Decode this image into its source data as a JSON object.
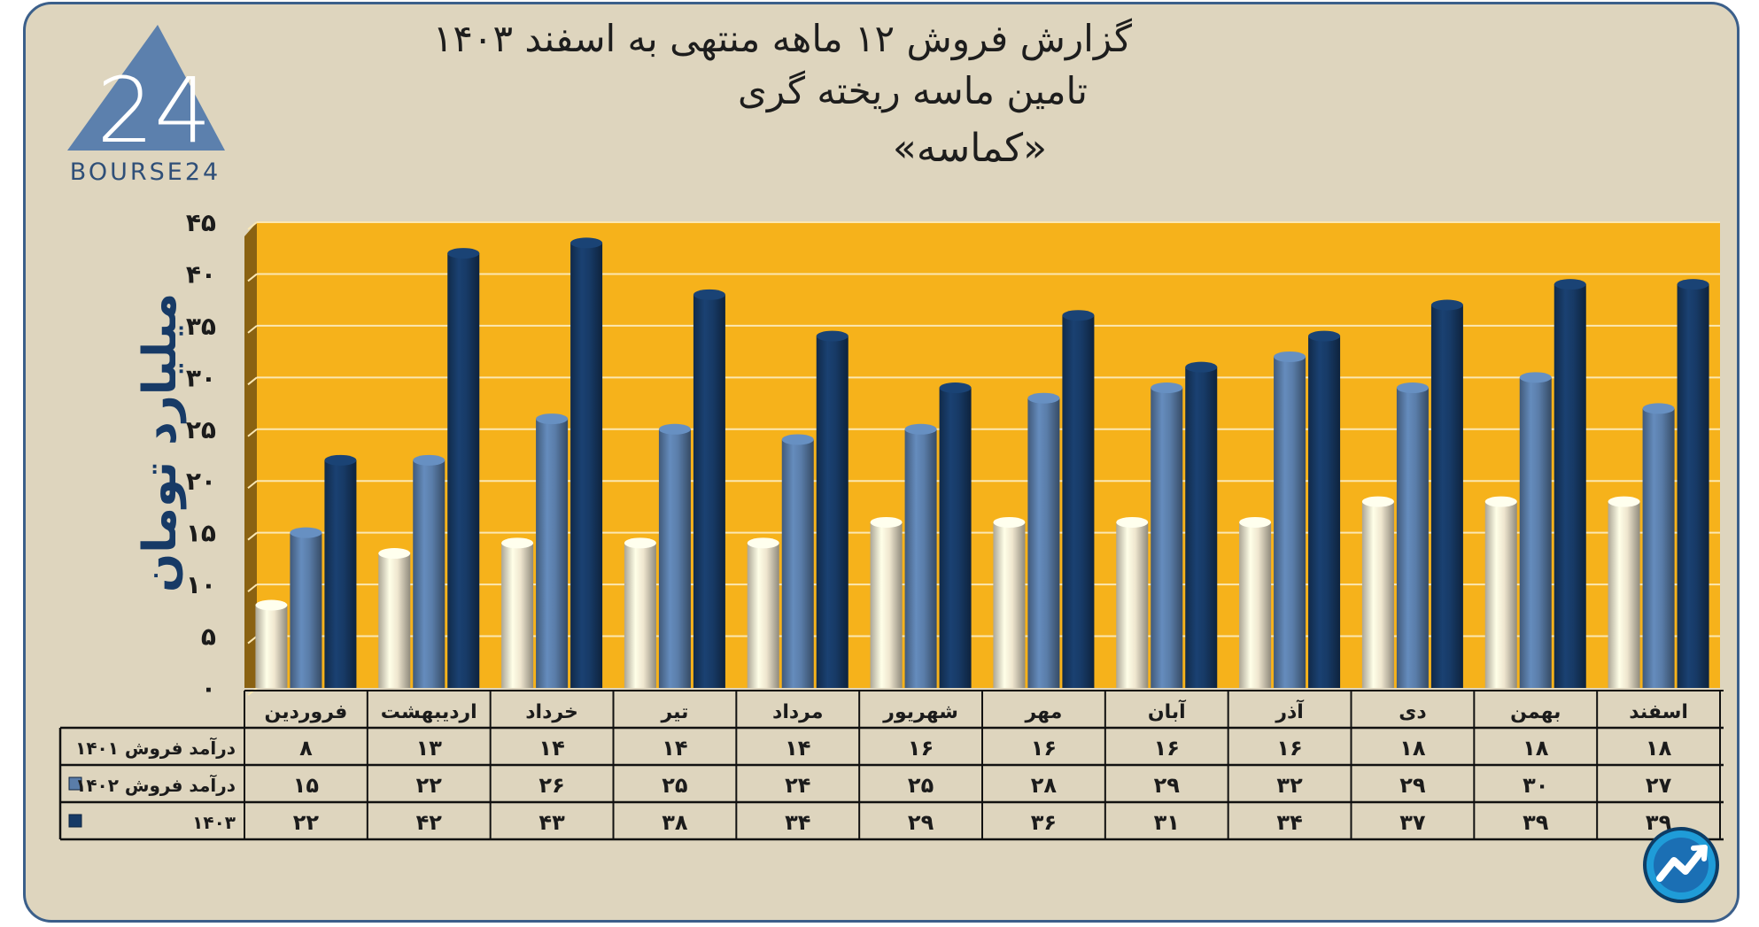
{
  "header": {
    "title_line1": "گزارش  فروش ۱۲ ماهه منتهی به اسفند ۱۴۰۳",
    "title_line2": "تامین ماسه ریخته گری",
    "title_line3": "«کماسه»"
  },
  "logo": {
    "text": "BOURSE24",
    "mark": "24"
  },
  "colors": {
    "plot_background": "#f6b21b",
    "series_1401": "#efe6cf",
    "series_1402": "#5a7da9",
    "series_1403": "#173a66",
    "axis_label": "#173a66"
  },
  "chart_data": {
    "type": "bar",
    "title": "گزارش  فروش ۱۲ ماهه منتهی به اسفند ۱۴۰۳",
    "ylabel": "میلیارد تومان",
    "ylim": [
      0,
      45
    ],
    "yticks": [
      0,
      5,
      10,
      15,
      20,
      25,
      30,
      35,
      40,
      45
    ],
    "ytick_labels": [
      "۰",
      "۵",
      "۱۰",
      "۱۵",
      "۲۰",
      "۲۵",
      "۳۰",
      "۳۵",
      "۴۰",
      "۴۵"
    ],
    "grid": true,
    "categories": [
      "فروردین",
      "اردیبهشت",
      "خرداد",
      "تیر",
      "مرداد",
      "شهریور",
      "مهر",
      "آبان",
      "آذر",
      "دی",
      "بهمن",
      "اسفند"
    ],
    "series": [
      {
        "name": "درآمد فروش ۱۴۰۱",
        "values": [
          8,
          13,
          14,
          14,
          14,
          16,
          16,
          16,
          16,
          18,
          18,
          18
        ],
        "labels": [
          "۸",
          "۱۳",
          "۱۴",
          "۱۴",
          "۱۴",
          "۱۶",
          "۱۶",
          "۱۶",
          "۱۶",
          "۱۸",
          "۱۸",
          "۱۸"
        ]
      },
      {
        "name": "درآمد فروش ۱۴۰۲",
        "values": [
          15,
          22,
          26,
          25,
          24,
          25,
          28,
          29,
          32,
          29,
          30,
          27
        ],
        "labels": [
          "۱۵",
          "۲۲",
          "۲۶",
          "۲۵",
          "۲۴",
          "۲۵",
          "۲۸",
          "۲۹",
          "۳۲",
          "۲۹",
          "۳۰",
          "۲۷"
        ]
      },
      {
        "name": "۱۴۰۳",
        "values": [
          22,
          42,
          43,
          38,
          34,
          29,
          36,
          31,
          34,
          37,
          39,
          39
        ],
        "labels": [
          "۲۲",
          "۴۲",
          "۴۳",
          "۳۸",
          "۳۴",
          "۲۹",
          "۳۶",
          "۳۱",
          "۳۴",
          "۳۷",
          "۳۹",
          "۳۹"
        ]
      }
    ]
  }
}
